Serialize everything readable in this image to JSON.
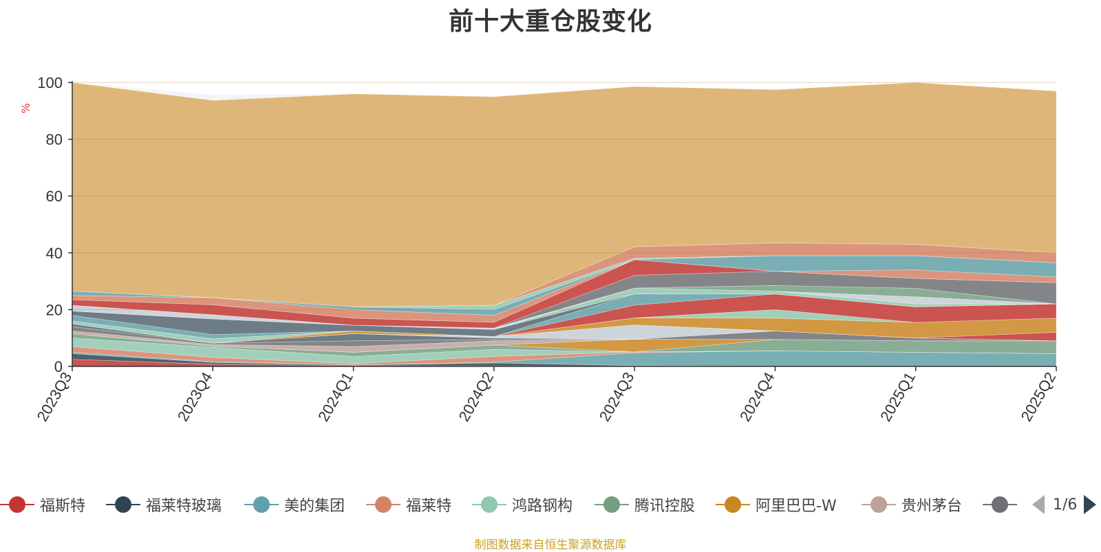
{
  "chart_data": {
    "type": "area",
    "stacked": true,
    "title": "前十大重仓股变化",
    "ylabel": "%",
    "ylim": [
      0,
      100
    ],
    "yticks": [
      0,
      20,
      40,
      60,
      80,
      100
    ],
    "categories": [
      "2023Q3",
      "2023Q4",
      "2024Q1",
      "2024Q2",
      "2024Q3",
      "2024Q4",
      "2025Q1",
      "2025Q2"
    ],
    "grid": true,
    "legend_position": "bottom",
    "series": [
      {
        "name": "福斯特",
        "color": "#c23531",
        "values": [
          2.5,
          0.8,
          0.3,
          0.2,
          0.1,
          0.0,
          0.0,
          0.0
        ]
      },
      {
        "name": "福莱特玻璃",
        "color": "#2f4554",
        "values": [
          2.0,
          0.6,
          0.2,
          1.0,
          0.2,
          0.0,
          0.0,
          0.0
        ]
      },
      {
        "name": "美的集团",
        "color": "#61a0a8",
        "values": [
          0.5,
          0.3,
          0.0,
          0.3,
          4.5,
          5.5,
          5.0,
          4.5
        ]
      },
      {
        "name": "福莱特",
        "color": "#d48265",
        "values": [
          2.0,
          1.5,
          0.5,
          2.0,
          0.3,
          0.0,
          0.0,
          0.0
        ]
      },
      {
        "name": "鸿路钢构",
        "color": "#91c7ae",
        "values": [
          3.0,
          3.5,
          2.5,
          2.5,
          0.0,
          0.0,
          0.0,
          0.0
        ]
      },
      {
        "name": "腾讯控股",
        "color": "#749f83",
        "values": [
          1.5,
          0.5,
          1.5,
          1.5,
          0.0,
          4.0,
          4.0,
          4.5
        ]
      },
      {
        "name": "阿里巴巴-W",
        "color": "#ca8622",
        "values": [
          0.0,
          0.0,
          0.0,
          0.0,
          4.5,
          0.0,
          0.0,
          0.0
        ]
      },
      {
        "name": "贵州茅台",
        "color": "#bda29a",
        "values": [
          1.0,
          0.5,
          2.0,
          1.5,
          0.0,
          0.0,
          0.0,
          0.0
        ]
      },
      {
        "name": "",
        "color": "#6e7074",
        "values": [
          1.5,
          0.5,
          2.0,
          0.5,
          0.0,
          3.0,
          1.0,
          0.0
        ]
      },
      {
        "name": "",
        "color": "#546570",
        "values": [
          1.0,
          0.0,
          2.5,
          0.5,
          0.0,
          0.0,
          0.0,
          0.0
        ]
      },
      {
        "name": "",
        "color": "#c4ccd3",
        "values": [
          0.0,
          0.0,
          0.0,
          0.5,
          5.0,
          0.0,
          0.0,
          0.0
        ]
      },
      {
        "name": "",
        "color": "#c23531",
        "values": [
          0.0,
          0.0,
          0.0,
          0.0,
          0.0,
          0.0,
          0.0,
          3.0
        ]
      },
      {
        "name": "",
        "color": "#ca8622",
        "values": [
          0.0,
          0.0,
          1.0,
          0.0,
          2.5,
          4.5,
          5.5,
          5.0
        ]
      },
      {
        "name": "",
        "color": "#91c7ae",
        "values": [
          1.0,
          1.5,
          0.0,
          0.0,
          0.0,
          3.0,
          0.0,
          0.0
        ]
      },
      {
        "name": "",
        "color": "#c23531",
        "values": [
          0.0,
          0.0,
          0.0,
          0.0,
          4.5,
          5.5,
          5.5,
          5.0
        ]
      },
      {
        "name": "",
        "color": "#61a0a8",
        "values": [
          2.0,
          1.5,
          0.0,
          0.0,
          4.0,
          0.0,
          0.0,
          0.0
        ]
      },
      {
        "name": "",
        "color": "#546570",
        "values": [
          1.5,
          5.5,
          2.0,
          2.5,
          0.0,
          0.0,
          0.0,
          0.0
        ]
      },
      {
        "name": "",
        "color": "#91c7ae",
        "values": [
          0.0,
          0.0,
          0.0,
          0.0,
          2.0,
          1.0,
          1.0,
          0.0
        ]
      },
      {
        "name": "",
        "color": "#c4ccd3",
        "values": [
          2.0,
          1.5,
          0.0,
          0.5,
          0.0,
          0.0,
          2.5,
          0.0
        ]
      },
      {
        "name": "",
        "color": "#749f83",
        "values": [
          0.0,
          0.0,
          0.0,
          0.0,
          0.0,
          2.0,
          3.0,
          0.0
        ]
      },
      {
        "name": "",
        "color": "#6e7074",
        "values": [
          0.0,
          0.0,
          0.0,
          0.0,
          4.5,
          5.0,
          3.5,
          7.5
        ]
      },
      {
        "name": "",
        "color": "#c23531",
        "values": [
          2.0,
          3.5,
          2.5,
          2.0,
          5.5,
          0.0,
          0.0,
          0.0
        ]
      },
      {
        "name": "",
        "color": "#d48265",
        "values": [
          1.5,
          2.5,
          3.0,
          2.5,
          0.0,
          0.0,
          3.0,
          2.0
        ]
      },
      {
        "name": "",
        "color": "#61a0a8",
        "values": [
          1.5,
          0.0,
          1.0,
          2.0,
          0.0,
          5.5,
          5.0,
          5.0
        ]
      },
      {
        "name": "",
        "color": "#91c7ae",
        "values": [
          0.0,
          0.0,
          0.0,
          1.5,
          0.5,
          0.0,
          0.0,
          0.0
        ]
      },
      {
        "name": "",
        "color": "#d48265",
        "values": [
          0.0,
          0.0,
          0.0,
          0.0,
          4.0,
          4.5,
          4.0,
          3.5
        ]
      },
      {
        "name": "",
        "color": "#d9a962",
        "values": [
          73.5,
          69.5,
          75.0,
          73.5,
          56.5,
          54.0,
          57.0,
          57.0
        ]
      },
      {
        "name": "",
        "color": "#f2f2f2",
        "values": [
          0.0,
          2.0,
          0.0,
          0.0,
          0.0,
          0.0,
          0.0,
          0.0
        ]
      }
    ],
    "source_note": "制图数据来自恒生聚源数据库"
  },
  "legend": {
    "items": [
      {
        "label": "福斯特",
        "color": "#c23531"
      },
      {
        "label": "福莱特玻璃",
        "color": "#2f4554"
      },
      {
        "label": "美的集团",
        "color": "#61a0a8"
      },
      {
        "label": "福莱特",
        "color": "#d48265"
      },
      {
        "label": "鸿路钢构",
        "color": "#91c7ae"
      },
      {
        "label": "腾讯控股",
        "color": "#749f83"
      },
      {
        "label": "阿里巴巴-W",
        "color": "#ca8622"
      },
      {
        "label": "贵州茅台",
        "color": "#bda29a"
      },
      {
        "label": "",
        "color": "#6e7074"
      }
    ],
    "page": "1/6"
  }
}
